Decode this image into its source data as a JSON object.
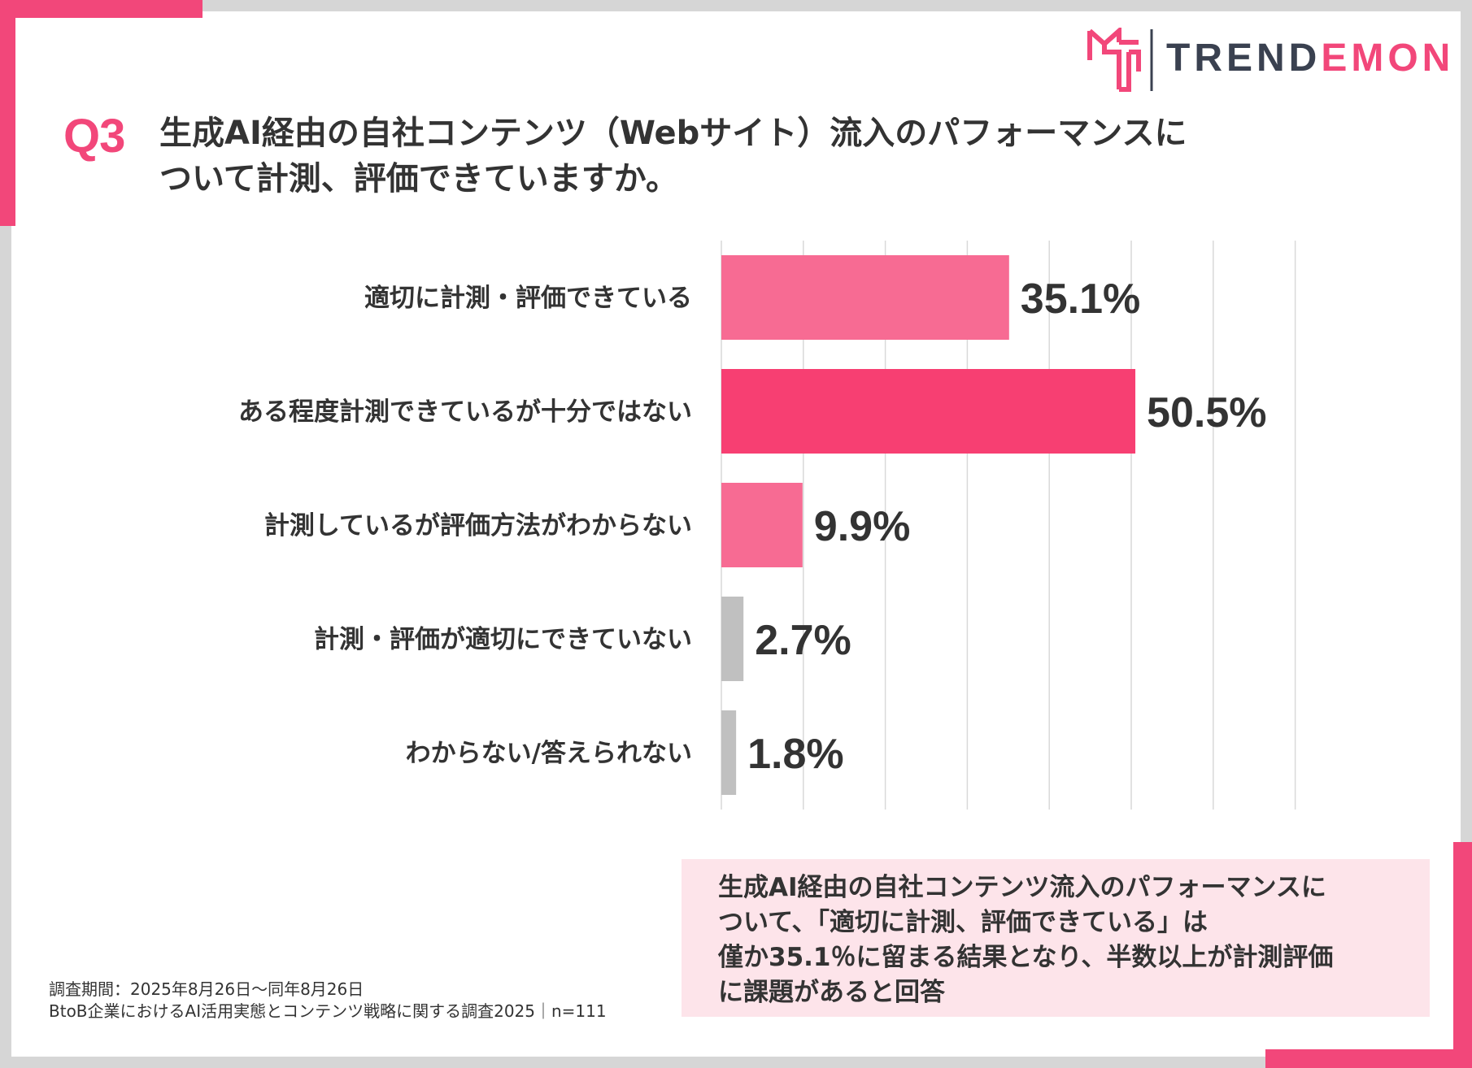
{
  "brand": {
    "name_part1": "TREND",
    "name_part2": "EMON",
    "accent_color": "#f2477a",
    "dark_color": "#3a4150",
    "logo_icon": "trendemon-logo-icon"
  },
  "question": {
    "label": "Q3",
    "title_line1": "生成AI経由の自社コンテンツ（Webサイト）流入のパフォーマンスに",
    "title_line2": "ついて計測、評価できていますか。"
  },
  "chart_data": {
    "type": "bar",
    "orientation": "horizontal",
    "categories": [
      "適切に計測・評価できている",
      "ある程度計測できているが十分ではない",
      "計測しているが評価方法がわからない",
      "計測・評価が適切にできていない",
      "わからない/答えられない"
    ],
    "values": [
      35.1,
      50.5,
      9.9,
      2.7,
      1.8
    ],
    "value_labels": [
      "35.1%",
      "50.5%",
      "9.9%",
      "2.7%",
      "1.8%"
    ],
    "colors": [
      "#f76b93",
      "#f73f72",
      "#f76b93",
      "#c0c0c0",
      "#c0c0c0"
    ],
    "xlim": [
      0,
      70
    ],
    "grid_step": 10,
    "grid": true,
    "title": "",
    "xlabel": "",
    "ylabel": ""
  },
  "summary": {
    "line1": "生成AI経由の自社コンテンツ流入のパフォーマンスに",
    "line2": "ついて、「適切に計測、評価できている」は",
    "line3": "僅か35.1％に留まる結果となり、半数以上が計測評価",
    "line4": "に課題があると回答",
    "background": "#fde4ea"
  },
  "footer": {
    "period": "調査期間：2025年8月26日～同年8月26日",
    "source": "BtoB企業におけるAI活用実態とコンテンツ戦略に関する調査2025｜n=111"
  }
}
